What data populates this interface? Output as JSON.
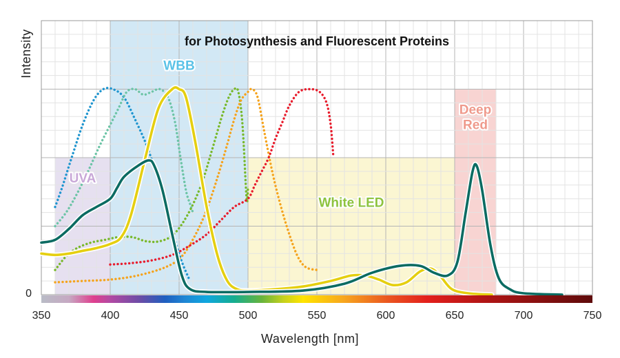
{
  "chart_data": {
    "type": "line",
    "title": "for Photosynthesis and Fluorescent Proteins",
    "xlabel": "Wavelength [nm]",
    "ylabel": "Intensity",
    "xlim": [
      350,
      750
    ],
    "ylim": [
      0,
      100
    ],
    "x_ticks": [
      "350",
      "400",
      "450",
      "500",
      "550",
      "600",
      "650",
      "700",
      "750"
    ],
    "x_tick_values": [
      350,
      400,
      450,
      500,
      550,
      600,
      650,
      700,
      750
    ],
    "y_zero_label": "0",
    "bands": [
      {
        "name": "UVA",
        "label_lines": [
          "UVA"
        ],
        "x_range": [
          360,
          400
        ],
        "y_top": 50,
        "fill": "#e6e0f0",
        "label_color": "#c9a8d8",
        "label_at": [
          380,
          41
        ]
      },
      {
        "name": "WBB",
        "label_lines": [
          "WBB"
        ],
        "x_range": [
          400,
          500
        ],
        "y_top": 100,
        "fill": "#d2e8f5",
        "label_color": "#5bc2e7",
        "label_at": [
          450,
          82
        ]
      },
      {
        "name": "White LED",
        "label_lines": [
          "White LED"
        ],
        "x_range": [
          500,
          650
        ],
        "y_top": 50,
        "fill": "#fbf6d2",
        "label_color": "#8ec33f",
        "label_at": [
          575,
          32
        ]
      },
      {
        "name": "Deep Red",
        "label_lines": [
          "Deep",
          "Red"
        ],
        "x_range": [
          650,
          680
        ],
        "y_top": 75,
        "fill": "#f8d4d2",
        "label_color": "#ef9a8c",
        "label_at": [
          665,
          66
        ]
      }
    ],
    "series": [
      {
        "name": "teal_solid",
        "color": "#0b6b62",
        "style": "solid",
        "points": [
          [
            350,
            19
          ],
          [
            360,
            20
          ],
          [
            370,
            24
          ],
          [
            380,
            29
          ],
          [
            390,
            32
          ],
          [
            400,
            35
          ],
          [
            405,
            39
          ],
          [
            410,
            43
          ],
          [
            420,
            47
          ],
          [
            428,
            49
          ],
          [
            432,
            47
          ],
          [
            438,
            38
          ],
          [
            445,
            22
          ],
          [
            452,
            7
          ],
          [
            458,
            2
          ],
          [
            470,
            1
          ],
          [
            500,
            1
          ],
          [
            540,
            1.5
          ],
          [
            570,
            4
          ],
          [
            590,
            8
          ],
          [
            610,
            10.5
          ],
          [
            625,
            10.5
          ],
          [
            635,
            8
          ],
          [
            645,
            7
          ],
          [
            652,
            12
          ],
          [
            658,
            30
          ],
          [
            663,
            45
          ],
          [
            666,
            47
          ],
          [
            670,
            38
          ],
          [
            676,
            18
          ],
          [
            682,
            6
          ],
          [
            690,
            2
          ],
          [
            700,
            0.5
          ],
          [
            728,
            0
          ]
        ]
      },
      {
        "name": "yellow_solid",
        "color": "#e5cf10",
        "style": "solid",
        "points": [
          [
            350,
            15
          ],
          [
            360,
            14.5
          ],
          [
            370,
            15
          ],
          [
            380,
            16
          ],
          [
            390,
            17
          ],
          [
            400,
            18.5
          ],
          [
            408,
            21
          ],
          [
            415,
            29
          ],
          [
            425,
            49
          ],
          [
            435,
            68
          ],
          [
            445,
            75
          ],
          [
            450,
            75
          ],
          [
            455,
            72
          ],
          [
            462,
            55
          ],
          [
            470,
            32
          ],
          [
            478,
            14
          ],
          [
            485,
            5
          ],
          [
            492,
            2
          ],
          [
            500,
            1.5
          ],
          [
            520,
            2
          ],
          [
            540,
            3
          ],
          [
            560,
            5
          ],
          [
            575,
            7
          ],
          [
            585,
            7
          ],
          [
            595,
            5.5
          ],
          [
            605,
            3.5
          ],
          [
            615,
            4.5
          ],
          [
            625,
            8.5
          ],
          [
            633,
            9.5
          ],
          [
            640,
            6.5
          ],
          [
            648,
            2
          ],
          [
            660,
            0.5
          ],
          [
            677,
            0
          ]
        ]
      },
      {
        "name": "blue_dotted",
        "color": "#1f95cf",
        "style": "dotted",
        "points": [
          [
            360,
            32
          ],
          [
            365,
            39
          ],
          [
            372,
            50
          ],
          [
            380,
            62
          ],
          [
            388,
            71
          ],
          [
            395,
            75
          ],
          [
            402,
            75
          ],
          [
            410,
            72
          ],
          [
            418,
            64
          ],
          [
            426,
            55
          ],
          [
            433,
            45
          ],
          [
            440,
            34
          ],
          [
            447,
            20
          ],
          [
            452,
            12
          ],
          [
            457,
            6
          ]
        ]
      },
      {
        "name": "cyan_dotted",
        "color": "#6cc4a6",
        "style": "dotted",
        "points": [
          [
            360,
            25
          ],
          [
            368,
            30
          ],
          [
            375,
            36
          ],
          [
            383,
            44
          ],
          [
            392,
            54
          ],
          [
            400,
            62
          ],
          [
            406,
            68
          ],
          [
            412,
            74
          ],
          [
            418,
            75
          ],
          [
            424,
            73
          ],
          [
            430,
            74
          ],
          [
            436,
            75
          ],
          [
            442,
            72
          ],
          [
            447,
            63
          ],
          [
            451,
            50
          ],
          [
            455,
            38
          ],
          [
            458,
            33
          ],
          [
            460,
            30
          ]
        ]
      },
      {
        "name": "green_dotted",
        "color": "#78b82a",
        "style": "dotted",
        "points": [
          [
            360,
            9
          ],
          [
            368,
            14
          ],
          [
            376,
            17
          ],
          [
            386,
            19
          ],
          [
            396,
            20
          ],
          [
            406,
            21
          ],
          [
            416,
            21
          ],
          [
            426,
            19.5
          ],
          [
            436,
            19.5
          ],
          [
            446,
            22
          ],
          [
            456,
            29
          ],
          [
            466,
            40
          ],
          [
            474,
            53
          ],
          [
            481,
            65
          ],
          [
            486,
            72
          ],
          [
            490,
            75
          ],
          [
            493,
            74
          ],
          [
            496,
            62
          ],
          [
            499,
            35
          ],
          [
            500,
            39
          ]
        ]
      },
      {
        "name": "orange_dotted",
        "color": "#f5a31c",
        "style": "dotted",
        "points": [
          [
            360,
            4.5
          ],
          [
            380,
            5
          ],
          [
            400,
            5.5
          ],
          [
            420,
            7
          ],
          [
            440,
            10
          ],
          [
            452,
            14
          ],
          [
            462,
            22
          ],
          [
            470,
            31
          ],
          [
            478,
            43
          ],
          [
            485,
            55
          ],
          [
            490,
            64
          ],
          [
            495,
            71
          ],
          [
            500,
            74
          ],
          [
            503,
            75
          ],
          [
            507,
            72
          ],
          [
            512,
            59
          ],
          [
            518,
            44
          ],
          [
            524,
            32
          ],
          [
            530,
            22
          ],
          [
            536,
            14
          ],
          [
            542,
            10
          ],
          [
            550,
            9
          ]
        ]
      },
      {
        "name": "red_dotted",
        "color": "#e81b2b",
        "style": "dotted",
        "points": [
          [
            400,
            11
          ],
          [
            415,
            11.5
          ],
          [
            430,
            12.5
          ],
          [
            445,
            14.5
          ],
          [
            458,
            18
          ],
          [
            470,
            22
          ],
          [
            480,
            27
          ],
          [
            490,
            32
          ],
          [
            500,
            35
          ],
          [
            505,
            40
          ],
          [
            510,
            45
          ],
          [
            515,
            50
          ],
          [
            520,
            57
          ],
          [
            525,
            63
          ],
          [
            530,
            69
          ],
          [
            537,
            74
          ],
          [
            545,
            75
          ],
          [
            552,
            74
          ],
          [
            557,
            70
          ],
          [
            560,
            62
          ],
          [
            562,
            50
          ]
        ]
      }
    ]
  }
}
